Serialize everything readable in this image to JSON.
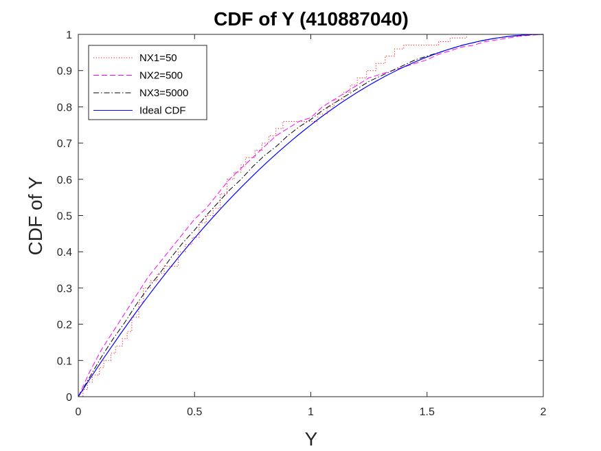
{
  "chart_data": {
    "type": "line",
    "title": "CDF of Y (410887040)",
    "xlabel": "Y",
    "ylabel": "CDF of Y",
    "xlim": [
      0,
      2
    ],
    "ylim": [
      0,
      1
    ],
    "xticks": [
      0,
      0.5,
      1,
      1.5,
      2
    ],
    "xtick_labels": [
      "0",
      "0.5",
      "1",
      "1.5",
      "2"
    ],
    "yticks": [
      0,
      0.1,
      0.2,
      0.3,
      0.4,
      0.5,
      0.6,
      0.7,
      0.8,
      0.9,
      1
    ],
    "ytick_labels": [
      "0",
      "0.1",
      "0.2",
      "0.3",
      "0.4",
      "0.5",
      "0.6",
      "0.7",
      "0.8",
      "0.9",
      "1"
    ],
    "grid": false,
    "legend_position": "top-left",
    "series": [
      {
        "name": "NX1=50",
        "color": "#ff0000",
        "style": "dotted",
        "step": true,
        "x": [
          0,
          0.02,
          0.04,
          0.06,
          0.09,
          0.11,
          0.14,
          0.16,
          0.19,
          0.21,
          0.23,
          0.26,
          0.28,
          0.31,
          0.34,
          0.37,
          0.4,
          0.43,
          0.46,
          0.49,
          0.52,
          0.55,
          0.58,
          0.61,
          0.64,
          0.67,
          0.7,
          0.72,
          0.76,
          0.79,
          0.82,
          0.85,
          0.88,
          0.9,
          1.0,
          1.03,
          1.07,
          1.1,
          1.14,
          1.17,
          1.2,
          1.24,
          1.28,
          1.32,
          1.36,
          1.4,
          1.5,
          1.55,
          1.6,
          1.67,
          1.75,
          2.0
        ],
        "y": [
          0,
          0.02,
          0.04,
          0.06,
          0.08,
          0.1,
          0.12,
          0.14,
          0.16,
          0.18,
          0.22,
          0.26,
          0.3,
          0.32,
          0.34,
          0.36,
          0.36,
          0.4,
          0.42,
          0.44,
          0.48,
          0.5,
          0.52,
          0.56,
          0.6,
          0.62,
          0.64,
          0.66,
          0.68,
          0.7,
          0.72,
          0.74,
          0.76,
          0.76,
          0.76,
          0.78,
          0.8,
          0.82,
          0.84,
          0.86,
          0.88,
          0.9,
          0.92,
          0.94,
          0.96,
          0.97,
          0.97,
          0.98,
          0.99,
          1.0,
          1.0,
          1.0
        ]
      },
      {
        "name": "NX2=500",
        "color": "#ff00ff",
        "style": "dashed",
        "x": [
          0,
          0.05,
          0.1,
          0.15,
          0.2,
          0.25,
          0.3,
          0.35,
          0.4,
          0.45,
          0.5,
          0.55,
          0.6,
          0.65,
          0.7,
          0.75,
          0.8,
          0.85,
          0.9,
          0.95,
          1.0,
          1.05,
          1.1,
          1.15,
          1.2,
          1.25,
          1.3,
          1.35,
          1.4,
          1.45,
          1.5,
          1.55,
          1.6,
          1.65,
          1.7,
          1.75,
          1.8,
          1.85,
          1.9,
          1.95,
          2.0
        ],
        "y": [
          0,
          0.07,
          0.13,
          0.18,
          0.23,
          0.28,
          0.33,
          0.37,
          0.41,
          0.45,
          0.49,
          0.52,
          0.56,
          0.6,
          0.63,
          0.66,
          0.69,
          0.72,
          0.74,
          0.76,
          0.77,
          0.8,
          0.82,
          0.84,
          0.86,
          0.88,
          0.89,
          0.9,
          0.91,
          0.92,
          0.93,
          0.945,
          0.955,
          0.965,
          0.97,
          0.98,
          0.985,
          0.99,
          0.995,
          0.998,
          1.0
        ]
      },
      {
        "name": "NX3=5000",
        "color": "#000000",
        "style": "dashdot",
        "x": [
          0,
          0.05,
          0.1,
          0.15,
          0.2,
          0.25,
          0.3,
          0.35,
          0.4,
          0.45,
          0.5,
          0.55,
          0.6,
          0.65,
          0.7,
          0.75,
          0.8,
          0.85,
          0.9,
          0.95,
          1.0,
          1.05,
          1.1,
          1.15,
          1.2,
          1.25,
          1.3,
          1.35,
          1.4,
          1.45,
          1.5,
          1.55,
          1.6,
          1.65,
          1.7,
          1.75,
          1.8,
          1.85,
          1.9,
          1.95,
          2.0
        ],
        "y": [
          0,
          0.055,
          0.11,
          0.16,
          0.205,
          0.255,
          0.3,
          0.34,
          0.385,
          0.425,
          0.46,
          0.5,
          0.535,
          0.57,
          0.6,
          0.635,
          0.665,
          0.69,
          0.72,
          0.745,
          0.765,
          0.79,
          0.81,
          0.83,
          0.85,
          0.87,
          0.885,
          0.9,
          0.915,
          0.93,
          0.94,
          0.95,
          0.96,
          0.97,
          0.977,
          0.984,
          0.99,
          0.994,
          0.997,
          0.999,
          1.0
        ]
      },
      {
        "name": "Ideal CDF",
        "color": "#0000ff",
        "style": "solid",
        "function": "y*(4-y)/4",
        "samples": 101
      }
    ]
  }
}
